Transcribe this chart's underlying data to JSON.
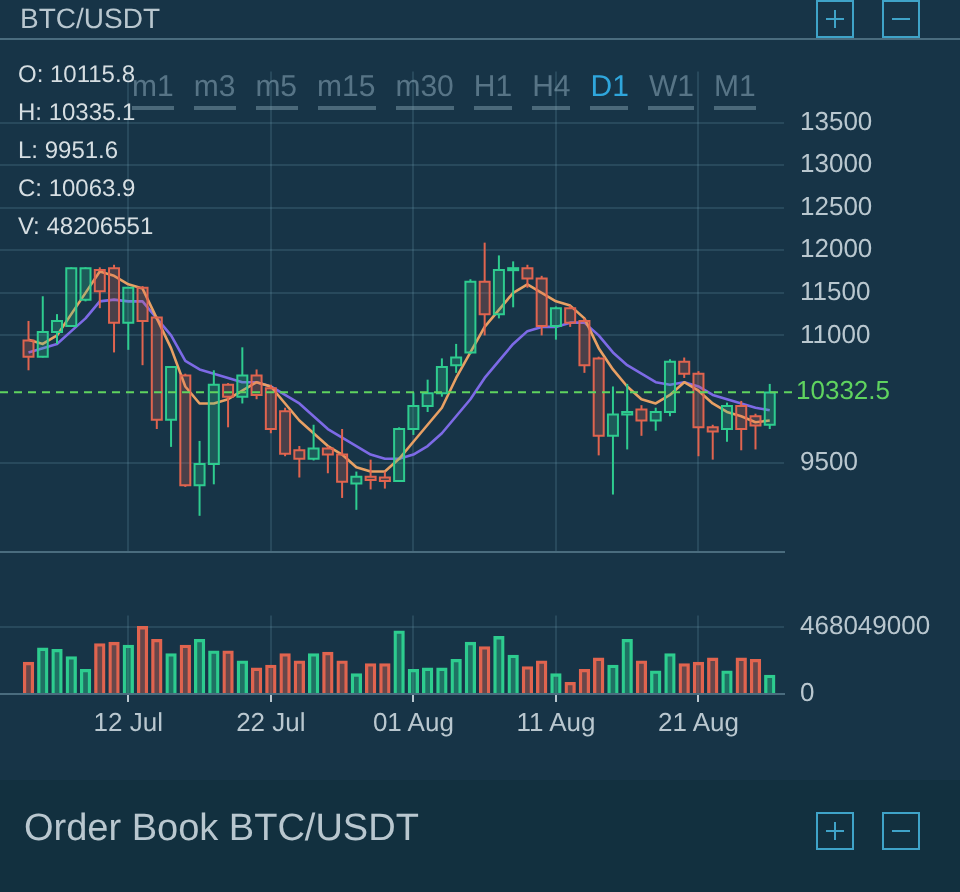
{
  "chart_data": [
    {
      "type": "candlestick",
      "title": "BTC/USDT",
      "annotations": [
        "O: 10115.8",
        "H: 10335.1",
        "L: 9951.6",
        "C: 10063.9",
        "V: 48206551",
        "m1",
        "m3",
        "m5",
        "m15",
        "m30",
        "H1",
        "H4",
        "D1",
        "W1",
        "M1",
        "Order Book BTC/USDT"
      ],
      "x": [
        "--07-05",
        "--07-06",
        "--07-07",
        "--07-08",
        "--07-09",
        "--07-10",
        "--07-11",
        "--07-12",
        "--07-13",
        "--07-14",
        "--07-15",
        "--07-16",
        "--07-17",
        "--07-18",
        "--07-19",
        "--07-20",
        "--07-21",
        "--07-22",
        "--07-23",
        "--07-24",
        "--07-25",
        "--07-26",
        "--07-27",
        "--07-28",
        "--07-29",
        "--07-30",
        "--07-31",
        "--08-01",
        "--08-02",
        "--08-03",
        "--08-04",
        "--08-05",
        "--08-06",
        "--08-07",
        "--08-08",
        "--08-09",
        "--08-10",
        "--08-11",
        "--08-12",
        "--08-13",
        "--08-14",
        "--08-15",
        "--08-16",
        "--08-17",
        "--08-18",
        "--08-19",
        "--08-20",
        "--08-21",
        "--08-22",
        "--08-23",
        "--08-24",
        "--08-25",
        "--08-26"
      ],
      "ohlc": [
        [
          10940,
          11170,
          10590,
          10750
        ],
        [
          10750,
          11460,
          10740,
          11040
        ],
        [
          11040,
          11250,
          10900,
          11170
        ],
        [
          11110,
          11800,
          11100,
          11790
        ],
        [
          11420,
          11800,
          11400,
          11790
        ],
        [
          11770,
          11800,
          11320,
          11520
        ],
        [
          11790,
          11830,
          10800,
          11150
        ],
        [
          11150,
          11570,
          10830,
          11560
        ],
        [
          11560,
          11580,
          10650,
          11170
        ],
        [
          11210,
          11220,
          9900,
          10010
        ],
        [
          10010,
          10640,
          9690,
          10630
        ],
        [
          10530,
          10550,
          9220,
          9240
        ],
        [
          9240,
          9760,
          8880,
          9490
        ],
        [
          9490,
          10590,
          9250,
          10420
        ],
        [
          10420,
          10440,
          9920,
          10280
        ],
        [
          10280,
          10860,
          10200,
          10530
        ],
        [
          10530,
          10600,
          10250,
          10300
        ],
        [
          10380,
          10420,
          9850,
          9900
        ],
        [
          10110,
          10150,
          9580,
          9610
        ],
        [
          9650,
          9700,
          9330,
          9550
        ],
        [
          9550,
          9950,
          9530,
          9670
        ],
        [
          9670,
          9700,
          9380,
          9600
        ],
        [
          9600,
          9900,
          9090,
          9280
        ],
        [
          9260,
          9400,
          8950,
          9340
        ],
        [
          9340,
          9540,
          9190,
          9300
        ],
        [
          9330,
          9400,
          9200,
          9290
        ],
        [
          9290,
          9920,
          9280,
          9900
        ],
        [
          9900,
          10330,
          9830,
          10170
        ],
        [
          10170,
          10480,
          10100,
          10320
        ],
        [
          10320,
          10730,
          10280,
          10630
        ],
        [
          10650,
          10900,
          10560,
          10740
        ],
        [
          10800,
          11660,
          10780,
          11630
        ],
        [
          11630,
          12090,
          11000,
          11250
        ],
        [
          11250,
          11940,
          11200,
          11770
        ],
        [
          11770,
          11870,
          11330,
          11790
        ],
        [
          11790,
          11830,
          11560,
          11670
        ],
        [
          11670,
          11700,
          11000,
          11110
        ],
        [
          11110,
          11340,
          10950,
          11320
        ],
        [
          11320,
          11350,
          11100,
          11150
        ],
        [
          11170,
          11200,
          10560,
          10650
        ],
        [
          10730,
          10750,
          9590,
          9820
        ],
        [
          9820,
          10400,
          9130,
          10070
        ],
        [
          10070,
          10430,
          9660,
          10100
        ],
        [
          10130,
          10180,
          9820,
          10000
        ],
        [
          10000,
          10150,
          9880,
          10100
        ],
        [
          10100,
          10720,
          10050,
          10690
        ],
        [
          10690,
          10740,
          10500,
          10550
        ],
        [
          10550,
          10580,
          9580,
          9920
        ],
        [
          9920,
          9950,
          9540,
          9870
        ],
        [
          9900,
          10210,
          9750,
          10170
        ],
        [
          10170,
          10230,
          9650,
          9900
        ],
        [
          10050,
          10080,
          9660,
          9940
        ],
        [
          9950,
          10430,
          9900,
          10330
        ]
      ],
      "series": [
        {
          "type": "line",
          "color": "#e8a064",
          "values": [
            10950,
            10900,
            11000,
            11250,
            11500,
            11750,
            11700,
            11600,
            11550,
            11200,
            10850,
            10400,
            10200,
            10200,
            10250,
            10350,
            10450,
            10400,
            10200,
            10000,
            9850,
            9700,
            9600,
            9450,
            9400,
            9400,
            9550,
            9750,
            9950,
            10150,
            10500,
            10800,
            11100,
            11300,
            11500,
            11600,
            11500,
            11400,
            11350,
            11200,
            10850,
            10600,
            10400,
            10250,
            10200,
            10300,
            10450,
            10350,
            10200,
            10100,
            10050,
            9980,
            10000
          ]
        },
        {
          "type": "line",
          "color": "#7d6ae6",
          "values": [
            10800,
            10850,
            10900,
            11050,
            11200,
            11400,
            11420,
            11400,
            11400,
            11200,
            11000,
            10700,
            10600,
            10550,
            10500,
            10450,
            10450,
            10400,
            10300,
            10200,
            10050,
            9900,
            9800,
            9700,
            9600,
            9550,
            9550,
            9600,
            9700,
            9850,
            10050,
            10250,
            10500,
            10700,
            10900,
            11050,
            11100,
            11100,
            11150,
            11150,
            11000,
            10800,
            10650,
            10550,
            10450,
            10420,
            10450,
            10400,
            10300,
            10250,
            10200,
            10150,
            10120
          ]
        }
      ],
      "xlim": [
        "--07-03",
        "--08-27"
      ],
      "xticks": [
        {
          "value": "--07-12",
          "label": null
        },
        {
          "value": "--07-22",
          "label": null
        },
        {
          "value": "--08-01",
          "label": null
        },
        {
          "value": "--08-11",
          "label": null
        },
        {
          "value": "--08-21",
          "label": null
        }
      ],
      "ylim": [
        8450,
        14100
      ],
      "yticks": [
        9500,
        11000,
        11500,
        12000,
        12500,
        13000,
        13500
      ],
      "ref_lines": [
        {
          "axis": "y",
          "value": 10332.5,
          "label": "10332.5",
          "color": "#5fd35f",
          "line_style": "dashed"
        }
      ],
      "grid": true,
      "tick_labels": "y"
    },
    {
      "type": "bar",
      "x": [
        "--07-05",
        "--07-06",
        "--07-07",
        "--07-08",
        "--07-09",
        "--07-10",
        "--07-11",
        "--07-12",
        "--07-13",
        "--07-14",
        "--07-15",
        "--07-16",
        "--07-17",
        "--07-18",
        "--07-19",
        "--07-20",
        "--07-21",
        "--07-22",
        "--07-23",
        "--07-24",
        "--07-25",
        "--07-26",
        "--07-27",
        "--07-28",
        "--07-29",
        "--07-30",
        "--07-31",
        "--08-01",
        "--08-02",
        "--08-03",
        "--08-04",
        "--08-05",
        "--08-06",
        "--08-07",
        "--08-08",
        "--08-09",
        "--08-10",
        "--08-11",
        "--08-12",
        "--08-13",
        "--08-14",
        "--08-15",
        "--08-16",
        "--08-17",
        "--08-18",
        "--08-19",
        "--08-20",
        "--08-21",
        "--08-22",
        "--08-23",
        "--08-24",
        "--08-25",
        "--08-26"
      ],
      "values": [
        220000000,
        320000000,
        310000000,
        260000000,
        170000000,
        350000000,
        360000000,
        340000000,
        470000000,
        380000000,
        280000000,
        340000000,
        380000000,
        300000000,
        300000000,
        230000000,
        180000000,
        200000000,
        280000000,
        230000000,
        280000000,
        290000000,
        230000000,
        140000000,
        210000000,
        210000000,
        440000000,
        170000000,
        180000000,
        180000000,
        240000000,
        360000000,
        330000000,
        400000000,
        270000000,
        190000000,
        230000000,
        140000000,
        80000000,
        170000000,
        250000000,
        200000000,
        380000000,
        230000000,
        160000000,
        280000000,
        210000000,
        220000000,
        250000000,
        160000000,
        250000000,
        240000000,
        130000000
      ],
      "colors": [
        "#e0644f",
        "#2ecc8f",
        "#2ecc8f",
        "#2ecc8f",
        "#2ecc8f",
        "#e0644f",
        "#e0644f",
        "#2ecc8f",
        "#e0644f",
        "#e0644f",
        "#2ecc8f",
        "#e0644f",
        "#2ecc8f",
        "#2ecc8f",
        "#e0644f",
        "#2ecc8f",
        "#e0644f",
        "#e0644f",
        "#e0644f",
        "#e0644f",
        "#2ecc8f",
        "#e0644f",
        "#e0644f",
        "#2ecc8f",
        "#e0644f",
        "#e0644f",
        "#2ecc8f",
        "#2ecc8f",
        "#2ecc8f",
        "#2ecc8f",
        "#2ecc8f",
        "#2ecc8f",
        "#e0644f",
        "#2ecc8f",
        "#2ecc8f",
        "#e0644f",
        "#e0644f",
        "#2ecc8f",
        "#e0644f",
        "#e0644f",
        "#e0644f",
        "#2ecc8f",
        "#2ecc8f",
        "#e0644f",
        "#2ecc8f",
        "#2ecc8f",
        "#e0644f",
        "#e0644f",
        "#e0644f",
        "#2ecc8f",
        "#e0644f",
        "#e0644f",
        "#2ecc8f"
      ],
      "xlim": [
        "--07-03",
        "--08-27"
      ],
      "xticks": [
        {
          "value": "--07-12",
          "label": "12 Jul"
        },
        {
          "value": "--07-22",
          "label": "22 Jul"
        },
        {
          "value": "--08-01",
          "label": "01 Aug"
        },
        {
          "value": "--08-11",
          "label": "11 Aug"
        },
        {
          "value": "--08-21",
          "label": "21 Aug"
        }
      ],
      "ylim": [
        0,
        548000000
      ],
      "yticks": [
        0,
        468049000
      ],
      "grid": true
    }
  ]
}
